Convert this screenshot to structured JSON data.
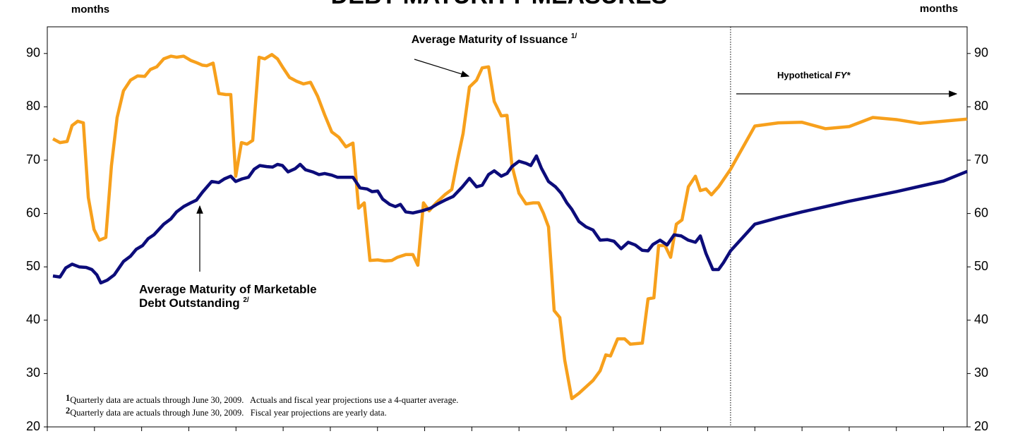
{
  "chart_data": {
    "type": "line",
    "title": "DEBT MATURITY MEASURES",
    "y_axis_label": "months",
    "y2_axis_label": "months",
    "xlim": [
      0,
      39
    ],
    "xticks": [
      0,
      2,
      4,
      6,
      8,
      10,
      12,
      14,
      16,
      18,
      20,
      22,
      24,
      26,
      28,
      30,
      32,
      34,
      36,
      38
    ],
    "ylim": [
      20,
      95
    ],
    "yticks": [
      20,
      30,
      40,
      50,
      60,
      70,
      80,
      90
    ],
    "y2lim": [
      20,
      95
    ],
    "y2ticks": [
      20,
      30,
      40,
      50,
      60,
      70,
      80,
      90
    ],
    "grid": false,
    "projection_start_x": 28.97,
    "annotations": {
      "issuance_label": "Average Maturity of Issuance",
      "issuance_note": "1/",
      "outstanding_label": [
        "Average Maturity of Marketable",
        "Debt Outstanding"
      ],
      "outstanding_note": "2/",
      "hypothetical": "Hypothetical",
      "hypothetical_fy": "FY*"
    },
    "footnotes": [
      {
        "marker": "1",
        "text": "Quarterly data are actuals through June 30, 2009.   Actuals and fiscal year projections use a 4-quarter average."
      },
      {
        "marker": "2",
        "text": "Quarterly data are actuals through June 30, 2009.   Fiscal year projections are yearly data."
      }
    ],
    "series": [
      {
        "name": "Average Maturity of Issuance",
        "color": "#f7a01c",
        "x": [
          0.24,
          0.54,
          0.84,
          1.05,
          1.29,
          1.53,
          1.74,
          1.98,
          2.21,
          2.48,
          2.72,
          2.96,
          3.23,
          3.53,
          3.83,
          4.13,
          4.37,
          4.64,
          4.94,
          5.24,
          5.48,
          5.78,
          6.08,
          6.32,
          6.58,
          6.76,
          7.03,
          7.27,
          7.57,
          7.78,
          7.99,
          8.23,
          8.47,
          8.71,
          8.98,
          9.22,
          9.52,
          9.76,
          9.97,
          10.27,
          10.57,
          10.86,
          11.16,
          11.46,
          11.76,
          12.06,
          12.36,
          12.66,
          12.96,
          13.2,
          13.44,
          13.68,
          14.01,
          14.31,
          14.61,
          14.85,
          15.2,
          15.5,
          15.71,
          15.95,
          16.19,
          16.49,
          16.85,
          17.15,
          17.39,
          17.63,
          17.9,
          18.2,
          18.44,
          18.71,
          18.95,
          19.25,
          19.49,
          19.7,
          20.0,
          20.3,
          20.6,
          20.83,
          21.04,
          21.25,
          21.49,
          21.73,
          21.94,
          22.24,
          22.54,
          22.84,
          23.14,
          23.44,
          23.68,
          23.88,
          24.18,
          24.48,
          24.72,
          25.23,
          25.47,
          25.72,
          25.92,
          26.19,
          26.43,
          26.67,
          26.91,
          27.18,
          27.48,
          27.69,
          27.93,
          28.16,
          28.46,
          28.97,
          30,
          31,
          32,
          33,
          34,
          35,
          36,
          37,
          38,
          39
        ],
        "values": [
          74,
          73.3,
          73.5,
          76.5,
          77.3,
          77,
          63,
          57,
          55,
          55.5,
          69,
          78,
          83,
          85,
          85.8,
          85.7,
          87,
          87.5,
          89,
          89.5,
          89.3,
          89.5,
          88.7,
          88.3,
          87.8,
          87.7,
          88.2,
          82.5,
          82.3,
          82.3,
          67,
          73.3,
          73,
          73.7,
          89.3,
          89,
          89.8,
          89,
          87.5,
          85.5,
          84.8,
          84.3,
          84.6,
          82,
          78.5,
          75.3,
          74.3,
          72.5,
          73.2,
          61,
          62,
          51.2,
          51.3,
          51.1,
          51.2,
          51.8,
          52.3,
          52.3,
          50.3,
          62,
          60.5,
          62,
          63.5,
          64.5,
          70,
          75,
          83.7,
          85,
          87.3,
          87.5,
          81,
          78.3,
          78.4,
          69,
          63.8,
          61.8,
          62,
          62,
          60,
          57.5,
          41.8,
          40.5,
          32.5,
          25.3,
          26.3,
          27.5,
          28.7,
          30.5,
          33.5,
          33.3,
          36.5,
          36.5,
          35.5,
          35.7,
          44,
          44.2,
          54,
          54,
          51.8,
          58,
          58.8,
          65,
          67,
          64.3,
          64.6,
          63.5,
          65,
          68.3,
          76.4,
          77,
          77.1,
          75.9,
          76.3,
          78,
          77.6,
          76.9,
          77.3,
          77.7
        ]
      },
      {
        "name": "Average Maturity of Marketable Debt Outstanding",
        "color": "#0c0c7a",
        "x": [
          0.24,
          0.54,
          0.78,
          1.05,
          1.35,
          1.65,
          1.89,
          2.1,
          2.27,
          2.54,
          2.84,
          3.23,
          3.53,
          3.77,
          4.04,
          4.28,
          4.52,
          4.94,
          5.24,
          5.48,
          5.78,
          6.08,
          6.32,
          6.58,
          6.97,
          7.27,
          7.51,
          7.78,
          7.99,
          8.26,
          8.53,
          8.77,
          9.01,
          9.31,
          9.55,
          9.76,
          9.97,
          10.21,
          10.51,
          10.72,
          10.95,
          11.25,
          11.52,
          11.76,
          12.06,
          12.3,
          12.66,
          12.96,
          13.26,
          13.56,
          13.77,
          14.01,
          14.22,
          14.52,
          14.76,
          14.97,
          15.2,
          15.5,
          15.89,
          16.25,
          16.55,
          16.91,
          17.21,
          17.6,
          17.9,
          18.2,
          18.44,
          18.71,
          18.95,
          19.25,
          19.49,
          19.7,
          20.0,
          20.3,
          20.5,
          20.74,
          20.95,
          21.25,
          21.55,
          21.79,
          22.03,
          22.24,
          22.54,
          22.84,
          23.14,
          23.44,
          23.74,
          24.03,
          24.33,
          24.63,
          24.93,
          25.23,
          25.47,
          25.68,
          25.98,
          26.28,
          26.58,
          26.88,
          27.18,
          27.48,
          27.69,
          27.93,
          28.22,
          28.46,
          28.67,
          28.97,
          30,
          31,
          32,
          33,
          34,
          35,
          36,
          37,
          38,
          39
        ],
        "values": [
          48.3,
          48.1,
          49.8,
          50.5,
          50,
          49.9,
          49.5,
          48.5,
          47,
          47.5,
          48.5,
          51,
          52,
          53.3,
          54,
          55.3,
          56,
          58,
          59,
          60.3,
          61.3,
          62,
          62.5,
          64,
          66,
          65.8,
          66.5,
          67,
          66,
          66.5,
          66.8,
          68.3,
          69,
          68.8,
          68.7,
          69.2,
          69,
          67.8,
          68.4,
          69.2,
          68.2,
          67.8,
          67.3,
          67.5,
          67.2,
          66.8,
          66.8,
          66.8,
          64.8,
          64.6,
          64.1,
          64.2,
          62.7,
          61.7,
          61.3,
          61.7,
          60.3,
          60.1,
          60.5,
          61,
          61.8,
          62.6,
          63.2,
          65,
          66.6,
          65,
          65.3,
          67.3,
          68,
          67,
          67.5,
          68.8,
          69.8,
          69.4,
          69,
          70.8,
          68.5,
          66,
          65,
          63.8,
          62,
          60.8,
          58.5,
          57.5,
          56.9,
          55,
          55.1,
          54.8,
          53.4,
          54.6,
          54.1,
          53.1,
          53,
          54.2,
          55,
          54.1,
          56,
          55.8,
          55,
          54.6,
          55.8,
          52.5,
          49.5,
          49.5,
          50.8,
          53,
          58,
          59.2,
          60.3,
          61.3,
          62.3,
          63.2,
          64.1,
          65.1,
          66.1,
          67.9
        ]
      }
    ]
  }
}
